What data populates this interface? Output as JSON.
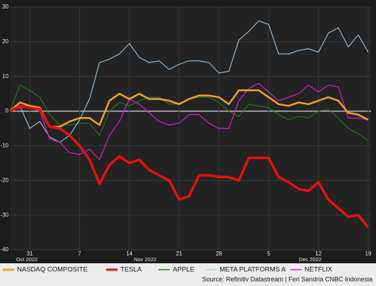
{
  "chart_data": {
    "type": "line",
    "categories": [
      null,
      null,
      "31",
      null,
      null,
      null,
      null,
      "7",
      null,
      null,
      null,
      null,
      "14",
      null,
      null,
      null,
      null,
      "21",
      null,
      null,
      null,
      "28",
      null,
      null,
      null,
      null,
      "5",
      null,
      null,
      null,
      null,
      "12",
      null,
      null,
      null,
      null,
      "19"
    ],
    "month_labels": [
      "Oct 2022",
      "Nov 2022",
      "Dec 2022"
    ],
    "series": [
      {
        "name": "NASDAQ COMPOSITE",
        "color": "#f5a030",
        "values": [
          0,
          2.5,
          1.5,
          1,
          -4.5,
          -4.5,
          -3,
          -2,
          -2,
          -4,
          3,
          5,
          3.5,
          5,
          3.5,
          3.5,
          3,
          2,
          3.5,
          4.5,
          4.5,
          4,
          2,
          6,
          6,
          6,
          4,
          2,
          1.5,
          2.5,
          2,
          3,
          4,
          3,
          -0.5,
          -1,
          -2.5
        ]
      },
      {
        "name": "TESLA",
        "color": "#e8100c",
        "values": [
          0,
          1.5,
          1,
          0.5,
          -4.5,
          -5,
          -7,
          -10,
          -14,
          -21,
          -15.5,
          -13,
          -15,
          -14,
          -17,
          -18.5,
          -20,
          -25.5,
          -24.5,
          -18.5,
          -18.5,
          -19,
          -19,
          -20,
          -13.5,
          -13.5,
          -13.5,
          -19,
          -20.5,
          -22.5,
          -23,
          -20.5,
          -25.5,
          -28,
          -30.5,
          -30,
          -33.5
        ]
      },
      {
        "name": "APPLE",
        "color": "#1f8a1a",
        "values": [
          0,
          7.5,
          6,
          4,
          -1,
          -4,
          -4,
          -3.5,
          -3.5,
          -7,
          0,
          2.5,
          1.5,
          3,
          4,
          4,
          2,
          2,
          3.5,
          4,
          4,
          2.5,
          0,
          -1.5,
          2,
          1.5,
          1,
          -1,
          -2.5,
          -1.5,
          -2,
          0,
          0.5,
          -2,
          -5,
          -6.5,
          -8.5
        ]
      },
      {
        "name": "META PLATFORMS A",
        "color": "#a8d4f5",
        "values": [
          0,
          1.5,
          -5,
          -3,
          -7.5,
          -9,
          -7,
          -2.5,
          3.5,
          14,
          15,
          16.5,
          19.5,
          15.5,
          14,
          14.5,
          12,
          13.5,
          14.5,
          14.5,
          14,
          11,
          11.5,
          20.5,
          23,
          26,
          25,
          16.5,
          16.5,
          17.5,
          18,
          17,
          22.5,
          24,
          18.5,
          22,
          17
        ]
      },
      {
        "name": "NETFLIX",
        "color": "#d81fd8",
        "values": [
          0,
          1,
          1,
          0,
          -8,
          -9,
          -12,
          -12.5,
          -11,
          -14,
          -7,
          -3,
          3.5,
          2,
          -0.5,
          -3,
          -4,
          -3.5,
          -1,
          -1,
          -3.5,
          -5,
          -5,
          3,
          6.5,
          8,
          5.5,
          3,
          4,
          5,
          7.5,
          5.5,
          7.5,
          7,
          -2,
          -2,
          -2.5
        ]
      }
    ],
    "ylim": [
      -40,
      30
    ],
    "yticks": [
      -40,
      -30,
      -20,
      -10,
      0,
      10,
      20,
      30
    ],
    "grid": true,
    "source": "Source: Refinitiv Datastream | Feri Sandria CNBC Indonesia"
  }
}
